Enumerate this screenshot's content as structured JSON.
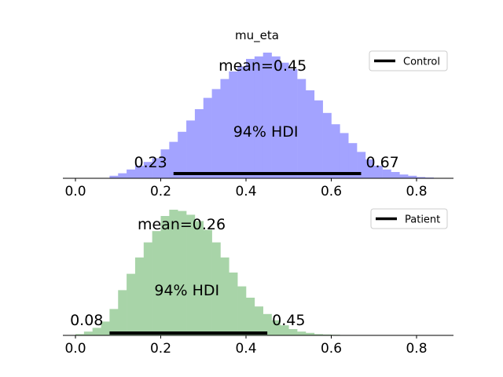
{
  "chart_data": [
    {
      "type": "histogram",
      "title": "mu_eta",
      "xlim": [
        -0.03,
        0.885
      ],
      "xticks": [
        {
          "value": 0.0,
          "label": "0.0"
        },
        {
          "value": 0.2,
          "label": "0.2"
        },
        {
          "value": 0.4,
          "label": "0.4"
        },
        {
          "value": 0.6,
          "label": "0.6"
        },
        {
          "value": 0.8,
          "label": "0.8"
        }
      ],
      "color": "#a3a3ff",
      "bin_width": 0.02,
      "bins": [
        {
          "x": 0.08,
          "density": 0.02
        },
        {
          "x": 0.1,
          "density": 0.04
        },
        {
          "x": 0.12,
          "density": 0.07
        },
        {
          "x": 0.14,
          "density": 0.1
        },
        {
          "x": 0.16,
          "density": 0.13
        },
        {
          "x": 0.18,
          "density": 0.16
        },
        {
          "x": 0.2,
          "density": 0.23
        },
        {
          "x": 0.22,
          "density": 0.29
        },
        {
          "x": 0.24,
          "density": 0.37
        },
        {
          "x": 0.26,
          "density": 0.46
        },
        {
          "x": 0.28,
          "density": 0.55
        },
        {
          "x": 0.3,
          "density": 0.64
        },
        {
          "x": 0.32,
          "density": 0.71
        },
        {
          "x": 0.34,
          "density": 0.79
        },
        {
          "x": 0.36,
          "density": 0.85
        },
        {
          "x": 0.38,
          "density": 0.89
        },
        {
          "x": 0.4,
          "density": 0.95
        },
        {
          "x": 0.42,
          "density": 0.97
        },
        {
          "x": 0.44,
          "density": 1.0
        },
        {
          "x": 0.46,
          "density": 0.97
        },
        {
          "x": 0.48,
          "density": 0.92
        },
        {
          "x": 0.5,
          "density": 0.87
        },
        {
          "x": 0.52,
          "density": 0.79
        },
        {
          "x": 0.54,
          "density": 0.7
        },
        {
          "x": 0.56,
          "density": 0.62
        },
        {
          "x": 0.58,
          "density": 0.52
        },
        {
          "x": 0.6,
          "density": 0.43
        },
        {
          "x": 0.62,
          "density": 0.36
        },
        {
          "x": 0.64,
          "density": 0.28
        },
        {
          "x": 0.66,
          "density": 0.21
        },
        {
          "x": 0.68,
          "density": 0.15
        },
        {
          "x": 0.7,
          "density": 0.1
        },
        {
          "x": 0.72,
          "density": 0.07
        },
        {
          "x": 0.74,
          "density": 0.05
        },
        {
          "x": 0.76,
          "density": 0.03
        },
        {
          "x": 0.78,
          "density": 0.02
        },
        {
          "x": 0.8,
          "density": 0.01
        },
        {
          "x": 0.82,
          "density": 0.006
        }
      ],
      "mean_label": "mean=0.45",
      "mean": 0.45,
      "hdi_label": "94% HDI",
      "hdi": [
        0.23,
        0.67
      ],
      "hdi_low_label": "0.23",
      "hdi_high_label": "0.67",
      "legend": {
        "label": "Control",
        "position": "upper right"
      }
    },
    {
      "type": "histogram",
      "title": "",
      "xlim": [
        -0.03,
        0.885
      ],
      "xticks": [
        {
          "value": 0.0,
          "label": "0.0"
        },
        {
          "value": 0.2,
          "label": "0.2"
        },
        {
          "value": 0.4,
          "label": "0.4"
        },
        {
          "value": 0.6,
          "label": "0.6"
        },
        {
          "value": 0.8,
          "label": "0.8"
        }
      ],
      "color": "#a8d4a8",
      "bin_width": 0.02,
      "bins": [
        {
          "x": 0.0,
          "density": 0.01
        },
        {
          "x": 0.02,
          "density": 0.03
        },
        {
          "x": 0.04,
          "density": 0.06
        },
        {
          "x": 0.06,
          "density": 0.11
        },
        {
          "x": 0.08,
          "density": 0.21
        },
        {
          "x": 0.1,
          "density": 0.36
        },
        {
          "x": 0.12,
          "density": 0.49
        },
        {
          "x": 0.14,
          "density": 0.62
        },
        {
          "x": 0.16,
          "density": 0.74
        },
        {
          "x": 0.18,
          "density": 0.83
        },
        {
          "x": 0.2,
          "density": 0.95
        },
        {
          "x": 0.22,
          "density": 1.0
        },
        {
          "x": 0.24,
          "density": 0.99
        },
        {
          "x": 0.26,
          "density": 0.96
        },
        {
          "x": 0.28,
          "density": 0.91
        },
        {
          "x": 0.3,
          "density": 0.84
        },
        {
          "x": 0.32,
          "density": 0.74
        },
        {
          "x": 0.34,
          "density": 0.62
        },
        {
          "x": 0.36,
          "density": 0.5
        },
        {
          "x": 0.38,
          "density": 0.39
        },
        {
          "x": 0.4,
          "density": 0.3
        },
        {
          "x": 0.42,
          "density": 0.23
        },
        {
          "x": 0.44,
          "density": 0.17
        },
        {
          "x": 0.46,
          "density": 0.12
        },
        {
          "x": 0.48,
          "density": 0.08
        },
        {
          "x": 0.5,
          "density": 0.05
        },
        {
          "x": 0.52,
          "density": 0.03
        },
        {
          "x": 0.54,
          "density": 0.02
        },
        {
          "x": 0.56,
          "density": 0.01
        },
        {
          "x": 0.58,
          "density": 0.007
        },
        {
          "x": 0.6,
          "density": 0.005
        },
        {
          "x": 0.62,
          "density": 0.003
        }
      ],
      "mean_label": "mean=0.26",
      "mean": 0.26,
      "hdi_label": "94% HDI",
      "hdi": [
        0.08,
        0.45
      ],
      "hdi_low_label": "0.08",
      "hdi_high_label": "0.45",
      "legend": {
        "label": "Patient",
        "position": "upper right"
      }
    }
  ]
}
